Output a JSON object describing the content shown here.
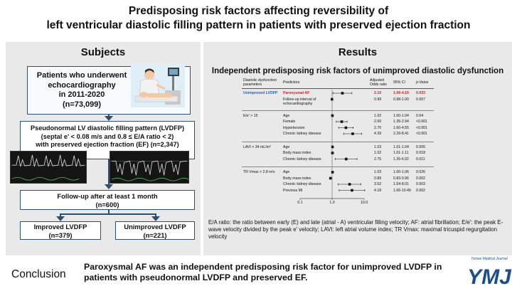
{
  "title": {
    "line1": "Predisposing risk factors affecting reversibility of",
    "line2": "left ventricular diastolic filling pattern in patients with preserved ejection fraction"
  },
  "subjects": {
    "heading": "Subjects",
    "patients": {
      "line1": "Patients who underwent",
      "line2": "echocardiography",
      "line3": "in 2011-2020",
      "line4": "(n=73,099)"
    },
    "lvdfp": {
      "line1": "Pseudonormal LV diastolic filling pattern (LVDFP)",
      "line2": "(septal e' < 0.08 m/s and 0.8 ≤ E/A ratio < 2)",
      "line3": "with preserved ejection fraction (EF) (n=2,347)"
    },
    "followup": {
      "line1": "Follow-up after at least 1 month",
      "line2": "(n=600)"
    },
    "improved": {
      "line1": "Improved LVDFP",
      "line2": "(n=379)"
    },
    "unimproved": {
      "line1": "Unimproved LVDFP",
      "line2": "(n=221)"
    }
  },
  "results": {
    "heading": "Results",
    "subtitle": "Independent predisposing risk factors of unimproved diastolic dysfunction",
    "headers": {
      "param": "Diastolic dysfunction parameters",
      "pred": "Predictors",
      "or": "Adjusted Odds ratio",
      "ci": "95% CI",
      "p": "p-Value"
    },
    "groups": [
      {
        "label": "Unimproved LVDFP",
        "rows": [
          {
            "pred": "Paroxysmal AF",
            "or": "2.10",
            "ci": "1.06-4.15",
            "p": "0.033",
            "est": 2.1,
            "lo": 1.06,
            "hi": 4.15,
            "highlight": true
          },
          {
            "pred": "Follow-up interval of echocardiography",
            "or": "0.99",
            "ci": "0.98-1.00",
            "p": "0.007",
            "est": 0.99,
            "lo": 0.98,
            "hi": 1.0
          }
        ]
      },
      {
        "label": "E/e' > 15",
        "rows": [
          {
            "pred": "Age",
            "or": "1.02",
            "ci": "1.00-1.04",
            "p": "0.04",
            "est": 1.02,
            "lo": 1.0,
            "hi": 1.04
          },
          {
            "pred": "Female",
            "or": "2.00",
            "ci": "1.35-2.94",
            "p": "<0.001",
            "est": 2.0,
            "lo": 1.35,
            "hi": 2.94
          },
          {
            "pred": "Hypertension",
            "or": "2.70",
            "ci": "1.60-4.55",
            "p": "<0.001",
            "est": 2.7,
            "lo": 1.6,
            "hi": 4.55
          },
          {
            "pred": "Chronic kidney disease",
            "or": "4.39",
            "ci": "2.29-8.41",
            "p": "<0.001",
            "est": 4.39,
            "lo": 2.29,
            "hi": 8.41
          }
        ]
      },
      {
        "label": "LAVI > 34 mL/m²",
        "rows": [
          {
            "pred": "Age",
            "or": "1.03",
            "ci": "1.01-1.04",
            "p": "0.005",
            "est": 1.03,
            "lo": 1.01,
            "hi": 1.04
          },
          {
            "pred": "Body mass index",
            "or": "1.02",
            "ci": "1.01-1.11",
            "p": "0.018",
            "est": 1.02,
            "lo": 1.01,
            "hi": 1.11
          },
          {
            "pred": "Chronic kidney disease",
            "or": "2.75",
            "ci": "1.26-6.02",
            "p": "0.011",
            "est": 2.75,
            "lo": 1.26,
            "hi": 6.02
          }
        ]
      },
      {
        "label": "TR Vmax > 2.8 m/s",
        "rows": [
          {
            "pred": "Age",
            "or": "1.03",
            "ci": "1.00-1.06",
            "p": "0.026",
            "est": 1.03,
            "lo": 1.0,
            "hi": 1.06
          },
          {
            "pred": "Body mass index",
            "or": "0.89",
            "ci": "0.83-0.96",
            "p": "0.002",
            "est": 0.89,
            "lo": 0.83,
            "hi": 0.96
          },
          {
            "pred": "Chronic kidney disease",
            "or": "3.52",
            "ci": "1.54-8.01",
            "p": "0.003",
            "est": 3.52,
            "lo": 1.54,
            "hi": 8.01
          },
          {
            "pred": "Previous MI",
            "or": "4.18",
            "ci": "1.66-10.49",
            "p": "0.002",
            "est": 4.18,
            "lo": 1.66,
            "hi": 10.49
          }
        ]
      }
    ],
    "axis_ticks": [
      "0.1",
      "1.0",
      "10.0"
    ],
    "abbreviations": "E/A ratio: the ratio between early (E) and late (atrial - A) ventricular filling velocity; AF: atrial fibrillation; E/e': the peak E-wave velocity divided by the peak e' velocity; LAVI: left atrial volume index; TR Vmax: maximal tricuspid regurgitation velocity"
  },
  "conclusion": {
    "label": "Conclusion",
    "text": "Paroxysmal AF was an independent predisposing risk factor for unimproved LVDFP in patients with pseudonormal LVDFP and preserved EF."
  },
  "logo": {
    "journal": "Yonsei Medical Journal",
    "mark": "YMJ"
  },
  "colors": {
    "panel": "#e9e9ea",
    "box_border": "#2f4f6e",
    "highlight_red": "#d4202a",
    "highlight_blue": "#1c63c8",
    "logo_blue": "#1c4e8f"
  }
}
